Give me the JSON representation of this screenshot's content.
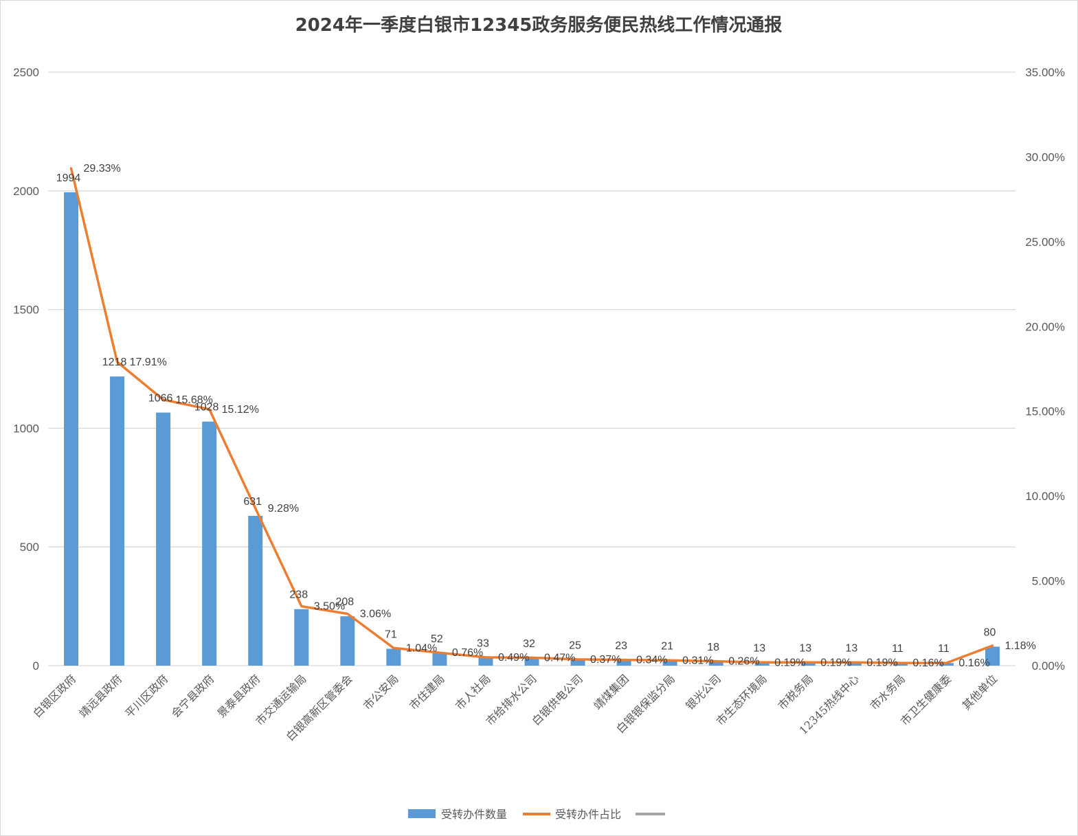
{
  "chart_data": {
    "type": "bar+line",
    "title": "2024年一季度白银市12345政务服务便民热线工作情况通报",
    "categories": [
      "白银区政府",
      "靖远县政府",
      "平川区政府",
      "会宁县政府",
      "景泰县政府",
      "市交通运输局",
      "白银高新区管委会",
      "市公安局",
      "市住建局",
      "市人社局",
      "市给排水公司",
      "白银供电公司",
      "靖煤集团",
      "白银银保监分局",
      "银光公司",
      "市生态环境局",
      "市税务局",
      "12345热线中心",
      "市水务局",
      "市卫生健康委",
      "其他单位"
    ],
    "series": [
      {
        "name": "受转办件数量",
        "type": "bar",
        "axis": "left",
        "color": "#5b9bd5",
        "values": [
          1994,
          1218,
          1066,
          1028,
          631,
          238,
          208,
          71,
          52,
          33,
          32,
          25,
          23,
          21,
          18,
          13,
          13,
          13,
          11,
          11,
          80
        ],
        "labels": [
          "1994",
          "1218",
          "1066",
          "1028",
          "631",
          "238",
          "208",
          "71",
          "52",
          "33",
          "32",
          "25",
          "23",
          "21",
          "18",
          "13",
          "13",
          "13",
          "11",
          "11",
          "80"
        ]
      },
      {
        "name": "受转办件占比",
        "type": "line",
        "axis": "right",
        "color": "#ed7d31",
        "values": [
          29.33,
          17.91,
          15.68,
          15.12,
          9.28,
          3.5,
          3.06,
          1.04,
          0.76,
          0.49,
          0.47,
          0.37,
          0.34,
          0.31,
          0.26,
          0.19,
          0.19,
          0.19,
          0.16,
          0.16,
          1.18
        ],
        "labels": [
          "29.33%",
          "17.91%",
          "15.68%",
          "15.12%",
          "9.28%",
          "3.50%",
          "3.06%",
          "1.04%",
          "0.76%",
          "0.49%",
          "0.47%",
          "0.37%",
          "0.34%",
          "0.31%",
          "0.26%",
          "0.19%",
          "0.19%",
          "0.19%",
          "0.16%",
          "0.16%",
          "1.18%"
        ]
      }
    ],
    "y_left": {
      "min": 0,
      "max": 2500,
      "ticks": [
        "0",
        "500",
        "1000",
        "1500",
        "2000",
        "2500"
      ]
    },
    "y_right": {
      "min": 0,
      "max": 35,
      "ticks": [
        "0.00%",
        "5.00%",
        "10.00%",
        "15.00%",
        "20.00%",
        "25.00%",
        "30.00%",
        "35.00%"
      ]
    },
    "grid": true,
    "legend_position": "bottom",
    "legend_extra_color": "#a5a5a5",
    "gridline_color": "#d9d9d9"
  }
}
